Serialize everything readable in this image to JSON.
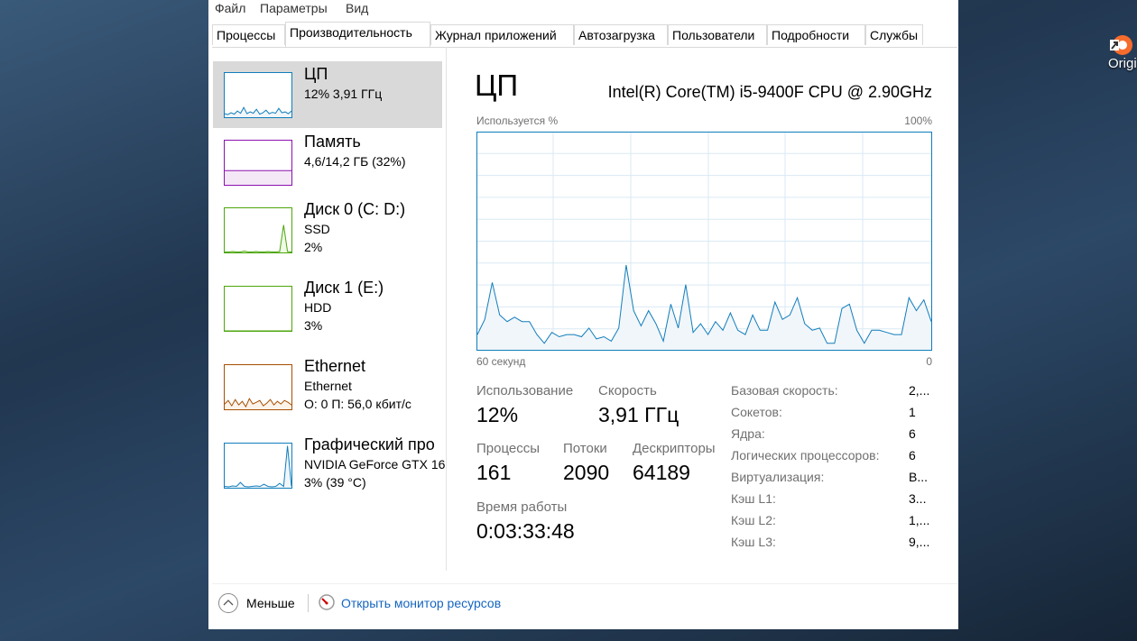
{
  "desktop_icon": "Origi",
  "menu": [
    "Файл",
    "Параметры",
    "Вид"
  ],
  "tabs": [
    "Процессы",
    "Производительность",
    "Журнал приложений",
    "Автозагрузка",
    "Пользователи",
    "Подробности",
    "Службы"
  ],
  "active_tab": 1,
  "sidebar": [
    {
      "title": "ЦП",
      "lines": [
        "12%  3,91 ГГц"
      ],
      "color": "#117dbb",
      "fill": "#f1f6fa",
      "graph": [
        8,
        6,
        10,
        7,
        14,
        9,
        22,
        8,
        12,
        9,
        18,
        7,
        10,
        16,
        8,
        11,
        9,
        20,
        10,
        12,
        8,
        14
      ]
    },
    {
      "title": "Память",
      "lines": [
        "4,6/14,2 ГБ (32%)"
      ],
      "color": "#8b12ae",
      "fill": "#f4e8f7",
      "graph": [
        32,
        32,
        32,
        32,
        32,
        32,
        32,
        32,
        32,
        32,
        32,
        32
      ]
    },
    {
      "title": "Диск 0 (C: D:)",
      "lines": [
        "SSD",
        "2%"
      ],
      "color": "#4da60c",
      "fill": "#effae7",
      "graph": [
        1,
        1,
        2,
        1,
        1,
        3,
        1,
        1,
        2,
        1,
        1,
        2,
        1,
        1,
        2,
        62,
        2,
        1
      ]
    },
    {
      "title": "Диск 1 (E:)",
      "lines": [
        "HDD",
        "3%"
      ],
      "color": "#4da60c",
      "fill": "#effae7",
      "graph": [
        0,
        0,
        0,
        0,
        0,
        0,
        0,
        0,
        0,
        0,
        0,
        0
      ]
    },
    {
      "title": "Ethernet",
      "lines": [
        "Ethernet",
        "О: 0 П: 56,0 кбит/с"
      ],
      "color": "#a74f01",
      "fill": "#fcf3eb",
      "graph": [
        12,
        20,
        8,
        22,
        10,
        18,
        6,
        24,
        12,
        16,
        20,
        8,
        14,
        22,
        10,
        18,
        12,
        20,
        16,
        10
      ]
    },
    {
      "title": "Графический про",
      "lines": [
        "NVIDIA GeForce GTX 16",
        "3%  (39 °C)"
      ],
      "color": "#117dbb",
      "fill": "#f1f6fa",
      "graph": [
        3,
        2,
        4,
        3,
        12,
        3,
        2,
        3,
        4,
        3,
        8,
        3,
        2,
        3,
        10,
        3,
        95,
        3
      ]
    }
  ],
  "main": {
    "title": "ЦП",
    "cpu_name": "Intel(R) Core(TM) i5-9400F CPU @ 2.90GHz",
    "graph_label_left": "Используется %",
    "graph_label_right": "100%",
    "axis_left": "60 секунд",
    "axis_right": "0",
    "graph_ylim": [
      0,
      100
    ],
    "graph_color": "#117dbb",
    "graph_values": [
      7,
      14,
      31,
      16,
      13,
      15,
      13,
      13,
      7,
      3,
      8,
      6,
      7,
      7,
      6,
      10,
      5,
      6,
      4,
      10,
      39,
      18,
      11,
      18,
      12,
      4,
      21,
      10,
      30,
      8,
      12,
      7,
      13,
      9,
      17,
      9,
      7,
      16,
      9,
      9,
      22,
      14,
      16,
      24,
      12,
      9,
      10,
      3,
      3,
      19,
      21,
      9,
      3,
      9,
      9,
      8,
      7,
      7,
      24,
      18,
      23,
      13
    ],
    "stats": [
      {
        "label": "Использование",
        "value": "12%"
      },
      {
        "label": "Скорость",
        "value": "3,91 ГГц"
      },
      {
        "label": "Процессы",
        "value": "161"
      },
      {
        "label": "Потоки",
        "value": "2090"
      },
      {
        "label": "Дескрипторы",
        "value": "64189"
      },
      {
        "label": "Время работы",
        "value": "0:03:33:48"
      }
    ],
    "details": [
      [
        "Базовая скорость:",
        "2,..."
      ],
      [
        "Сокетов:",
        "1"
      ],
      [
        "Ядра:",
        "6"
      ],
      [
        "Логических процессоров:",
        "6"
      ],
      [
        "Виртуализация:",
        "В..."
      ],
      [
        "Кэш L1:",
        "3..."
      ],
      [
        "Кэш L2:",
        "1,..."
      ],
      [
        "Кэш L3:",
        "9,..."
      ]
    ]
  },
  "footer": {
    "less": "Меньше",
    "monitor": "Открыть монитор ресурсов"
  }
}
